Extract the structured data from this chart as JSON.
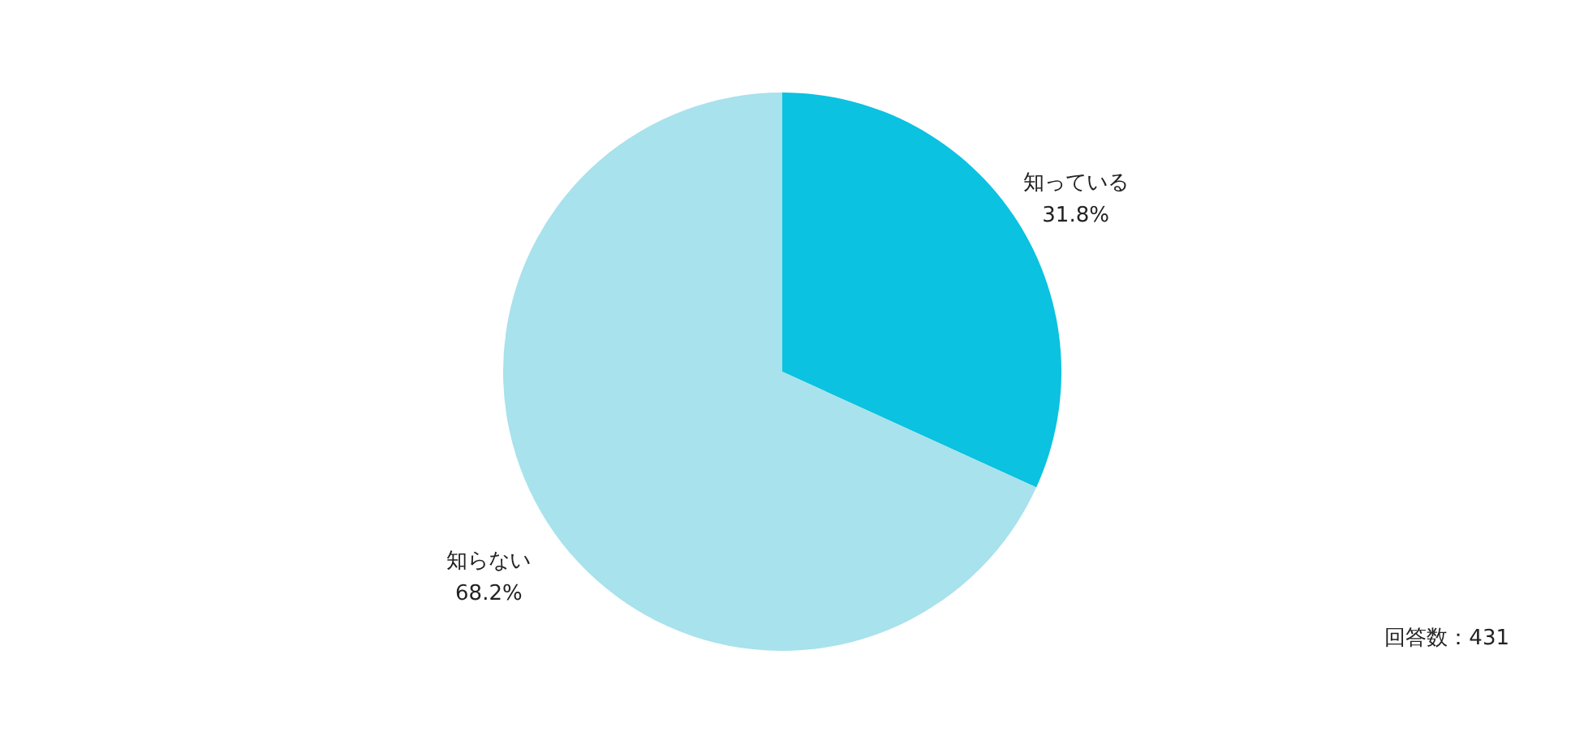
{
  "chart_data": {
    "type": "pie",
    "categories": [
      "知っている",
      "知らない"
    ],
    "values": [
      31.8,
      68.2
    ],
    "value_labels": [
      "31.8%",
      "68.2%"
    ],
    "colors": [
      "#0bc2e0",
      "#a8e2ec"
    ],
    "annotations": [
      "回答数：431"
    ]
  }
}
